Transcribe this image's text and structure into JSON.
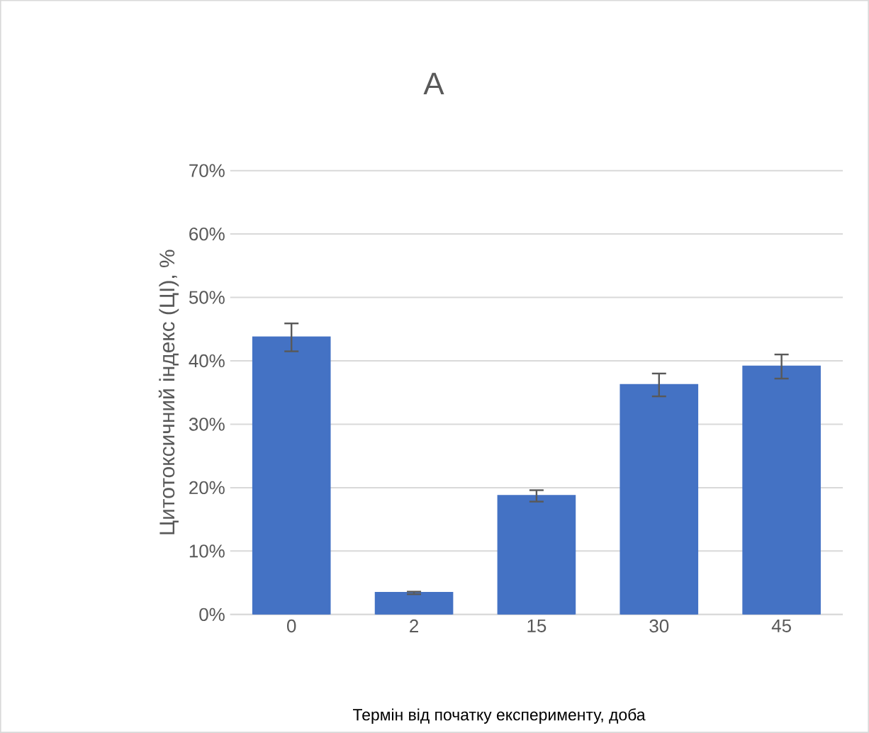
{
  "chart_data": {
    "type": "bar",
    "title": "A",
    "xlabel": "Термін від початку експерименту, доба",
    "ylabel": "Цитотоксичний індекс (ЦІ), %",
    "categories": [
      "0",
      "2",
      "15",
      "30",
      "45"
    ],
    "values": [
      43.7,
      3.4,
      18.7,
      36.2,
      39.1
    ],
    "errors": [
      2.2,
      0.2,
      0.9,
      1.8,
      1.9
    ],
    "color": "#4472c4",
    "ylim": [
      0,
      70
    ],
    "yticks": [
      {
        "value": 0,
        "label": "0%"
      },
      {
        "value": 10,
        "label": "10%"
      },
      {
        "value": 20,
        "label": "20%"
      },
      {
        "value": 30,
        "label": "30%"
      },
      {
        "value": 40,
        "label": "40%"
      },
      {
        "value": 50,
        "label": "50%"
      },
      {
        "value": 60,
        "label": "60%"
      },
      {
        "value": 70,
        "label": "70%"
      }
    ],
    "grid": "y"
  }
}
